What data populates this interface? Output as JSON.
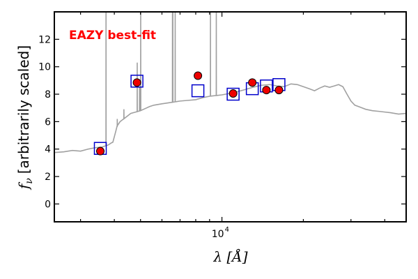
{
  "chart_data": {
    "type": "scatter",
    "annotation": "EAZY best-fit",
    "annotation_color": "#ff0000",
    "xlabel": "λ [Å]",
    "ylabel": "f_ν [arbitrarily scaled]",
    "ylabel_symbol": "f",
    "ylabel_subscript": "ν",
    "ylabel_text": "[arbitrarily scaled]",
    "x_scale": "log",
    "xlim": [
      2400,
      48000
    ],
    "ylim": [
      -1.3,
      14
    ],
    "x_tick_label": "10",
    "x_tick_exponent": "4",
    "y_ticks": [
      "0",
      "2",
      "4",
      "6",
      "8",
      "10",
      "12"
    ],
    "grid": false,
    "template_color": "#a0a0a0",
    "model_color": "#0000cc",
    "observed_color": "#ee0000",
    "template": {
      "continuum": [
        [
          2400,
          3.75
        ],
        [
          2600,
          3.8
        ],
        [
          2800,
          3.9
        ],
        [
          3000,
          3.85
        ],
        [
          3200,
          4.0
        ],
        [
          3400,
          4.1
        ],
        [
          3600,
          4.15
        ],
        [
          3800,
          4.3
        ],
        [
          3900,
          4.45
        ],
        [
          3950,
          4.5
        ],
        [
          4050,
          5.3
        ],
        [
          4100,
          5.7
        ],
        [
          4200,
          6.0
        ],
        [
          4400,
          6.3
        ],
        [
          4600,
          6.6
        ],
        [
          4800,
          6.7
        ],
        [
          5000,
          6.8
        ],
        [
          5200,
          6.95
        ],
        [
          5400,
          7.1
        ],
        [
          5600,
          7.2
        ],
        [
          6000,
          7.3
        ],
        [
          6500,
          7.4
        ],
        [
          7000,
          7.5
        ],
        [
          7500,
          7.55
        ],
        [
          8000,
          7.6
        ],
        [
          8500,
          7.75
        ],
        [
          9000,
          7.85
        ],
        [
          10000,
          7.95
        ],
        [
          11000,
          8.1
        ],
        [
          12000,
          8.3
        ],
        [
          13000,
          8.5
        ],
        [
          14000,
          8.65
        ],
        [
          15000,
          8.7
        ],
        [
          16000,
          8.6
        ],
        [
          17000,
          8.55
        ],
        [
          18000,
          8.75
        ],
        [
          19000,
          8.7
        ],
        [
          20000,
          8.55
        ],
        [
          21000,
          8.4
        ],
        [
          22000,
          8.25
        ],
        [
          23000,
          8.45
        ],
        [
          24000,
          8.6
        ],
        [
          25000,
          8.5
        ],
        [
          26000,
          8.6
        ],
        [
          27000,
          8.7
        ],
        [
          28000,
          8.55
        ],
        [
          29000,
          8.0
        ],
        [
          30000,
          7.5
        ],
        [
          31000,
          7.2
        ],
        [
          32000,
          7.1
        ],
        [
          34000,
          6.9
        ],
        [
          36000,
          6.8
        ],
        [
          38000,
          6.75
        ],
        [
          40000,
          6.7
        ],
        [
          42000,
          6.65
        ],
        [
          45000,
          6.55
        ],
        [
          48000,
          6.6
        ]
      ],
      "emission_lines": [
        [
          3727,
          14
        ],
        [
          4101,
          6.2
        ],
        [
          4340,
          6.9
        ],
        [
          4861,
          10.3
        ],
        [
          4959,
          8.5
        ],
        [
          5007,
          14
        ],
        [
          6563,
          14
        ],
        [
          6583,
          14
        ],
        [
          6716,
          14
        ],
        [
          9069,
          14
        ],
        [
          9532,
          14
        ]
      ]
    },
    "series": [
      {
        "name": "",
        "marker": "square",
        "x": [
          3550,
          4850,
          8150,
          11000,
          12950,
          14600,
          16250
        ],
        "y": [
          4.05,
          8.95,
          8.25,
          8.0,
          8.4,
          8.6,
          8.7
        ]
      },
      {
        "name": "",
        "marker": "circle",
        "x": [
          3550,
          4850,
          8150,
          11000,
          12950,
          14600,
          16250
        ],
        "y": [
          3.85,
          8.85,
          9.35,
          8.05,
          8.85,
          8.3,
          8.3
        ]
      }
    ]
  }
}
